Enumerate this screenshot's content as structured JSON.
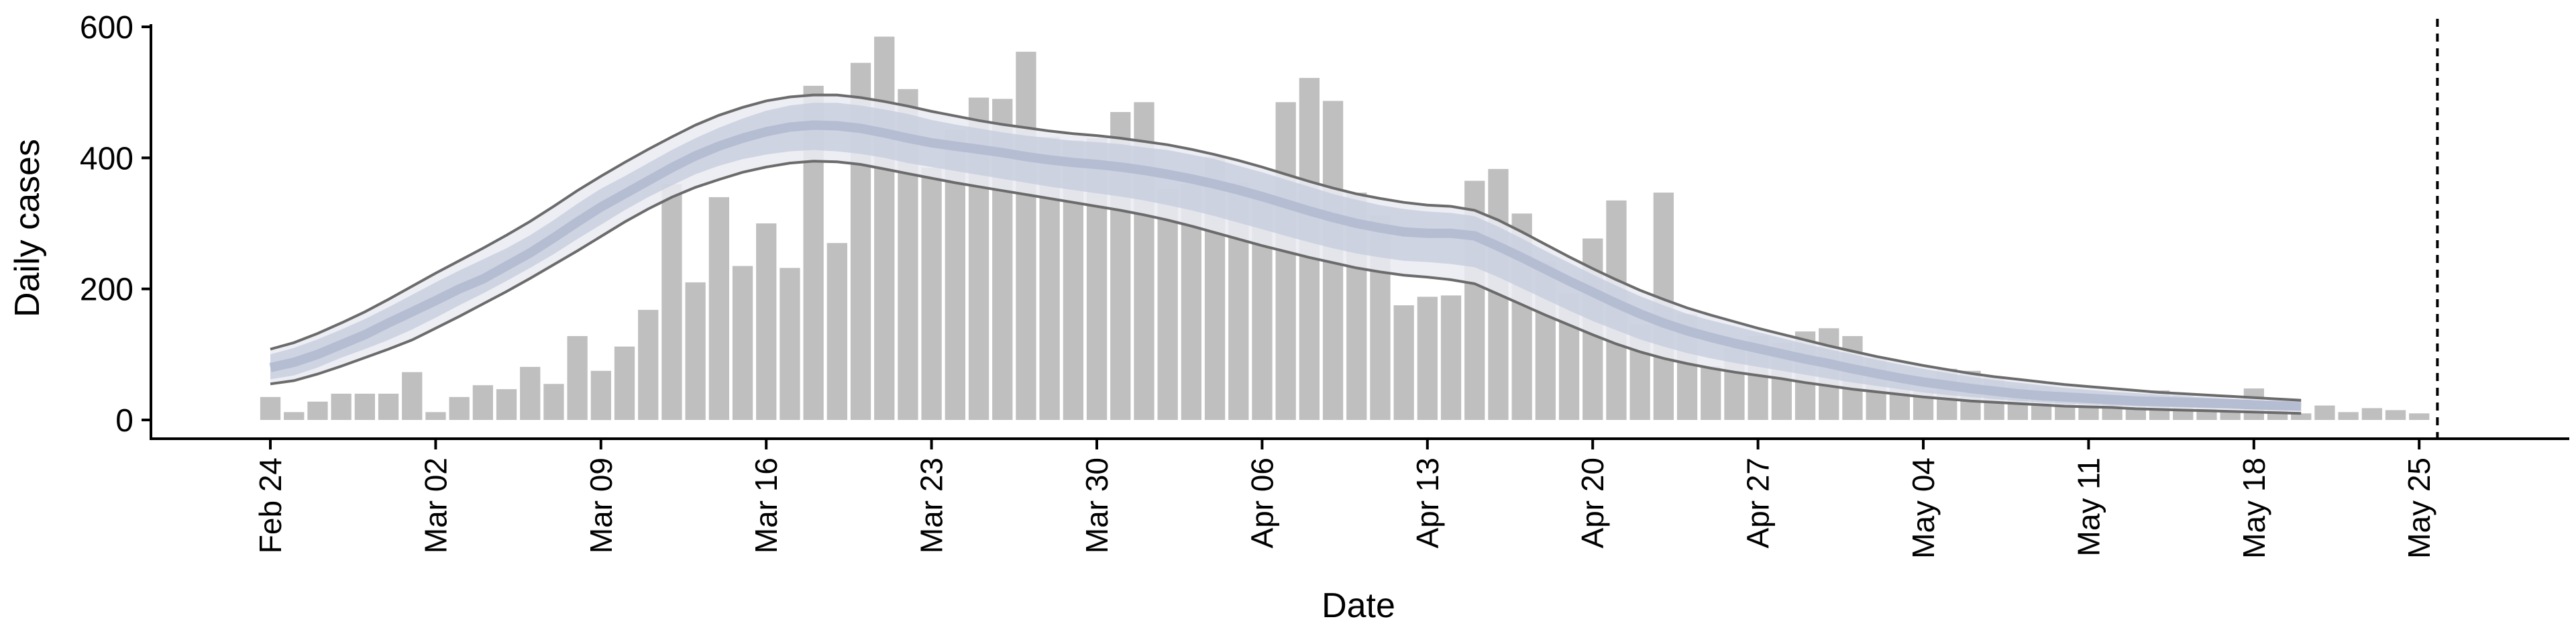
{
  "chart_data": {
    "type": "bar",
    "xlabel": "Date",
    "ylabel": "Daily cases",
    "ylim": [
      0,
      600
    ],
    "yticks": [
      0,
      200,
      400,
      600
    ],
    "xticks": [
      {
        "date": "2020-02-24",
        "label": "Feb 24"
      },
      {
        "date": "2020-03-02",
        "label": "Mar 02"
      },
      {
        "date": "2020-03-09",
        "label": "Mar 09"
      },
      {
        "date": "2020-03-16",
        "label": "Mar 16"
      },
      {
        "date": "2020-03-23",
        "label": "Mar 23"
      },
      {
        "date": "2020-03-30",
        "label": "Mar 30"
      },
      {
        "date": "2020-04-06",
        "label": "Apr 06"
      },
      {
        "date": "2020-04-13",
        "label": "Apr 13"
      },
      {
        "date": "2020-04-20",
        "label": "Apr 20"
      },
      {
        "date": "2020-04-27",
        "label": "Apr 27"
      },
      {
        "date": "2020-05-04",
        "label": "May 04"
      },
      {
        "date": "2020-05-11",
        "label": "May 11"
      },
      {
        "date": "2020-05-18",
        "label": "May 18"
      },
      {
        "date": "2020-05-25",
        "label": "May 25"
      }
    ],
    "x_start": "2020-02-24",
    "daily_cases": [
      35,
      12,
      28,
      40,
      40,
      40,
      73,
      12,
      35,
      53,
      47,
      81,
      55,
      128,
      75,
      112,
      168,
      360,
      210,
      340,
      235,
      300,
      232,
      510,
      270,
      545,
      585,
      505,
      385,
      442,
      492,
      490,
      562,
      432,
      427,
      430,
      470,
      485,
      352,
      360,
      402,
      362,
      337,
      485,
      522,
      487,
      347,
      312,
      175,
      188,
      190,
      365,
      383,
      315,
      242,
      193,
      277,
      335,
      145,
      347,
      162,
      82,
      110,
      128,
      118,
      135,
      140,
      128,
      95,
      55,
      45,
      78,
      75,
      65,
      52,
      50,
      35,
      40,
      33,
      30,
      45,
      40,
      27,
      12,
      48,
      32,
      10,
      22,
      12,
      18,
      15,
      10
    ],
    "estimate_median": [
      80,
      88,
      100,
      115,
      130,
      148,
      165,
      182,
      200,
      215,
      235,
      255,
      278,
      302,
      325,
      345,
      365,
      385,
      403,
      418,
      430,
      440,
      447,
      450,
      449,
      445,
      438,
      430,
      423,
      418,
      413,
      408,
      402,
      397,
      393,
      390,
      386,
      381,
      375,
      368,
      360,
      351,
      341,
      330,
      319,
      309,
      300,
      293,
      287,
      285,
      285,
      281,
      265,
      248,
      230,
      212,
      195,
      178,
      162,
      148,
      136,
      126,
      117,
      109,
      101,
      93,
      86,
      78,
      71,
      64,
      58,
      53,
      48,
      44,
      40,
      37,
      35,
      33,
      31,
      29,
      28,
      27,
      26,
      25,
      23,
      22,
      21
    ],
    "estimate_band_lower": [
      62,
      68,
      80,
      95,
      108,
      122,
      138,
      156,
      175,
      193,
      212,
      232,
      253,
      276,
      298,
      320,
      340,
      358,
      375,
      388,
      398,
      405,
      410,
      412,
      410,
      406,
      400,
      392,
      386,
      380,
      374,
      368,
      362,
      356,
      351,
      346,
      341,
      335,
      328,
      320,
      311,
      301,
      291,
      281,
      271,
      262,
      254,
      248,
      243,
      241,
      238,
      233,
      218,
      201,
      184,
      167,
      151,
      137,
      123,
      112,
      102,
      94,
      87,
      81,
      75,
      69,
      63,
      57,
      52,
      47,
      42,
      38,
      35,
      32,
      29,
      27,
      25,
      24,
      22,
      21,
      20,
      19,
      18,
      17,
      16,
      15,
      14
    ],
    "estimate_band_upper": [
      100,
      110,
      123,
      138,
      154,
      172,
      191,
      210,
      228,
      245,
      262,
      282,
      305,
      330,
      353,
      372,
      392,
      412,
      430,
      446,
      460,
      472,
      480,
      484,
      484,
      480,
      474,
      467,
      458,
      451,
      445,
      439,
      434,
      430,
      426,
      424,
      421,
      416,
      412,
      405,
      398,
      388,
      378,
      367,
      356,
      345,
      336,
      328,
      322,
      318,
      316,
      311,
      295,
      277,
      258,
      240,
      222,
      205,
      189,
      175,
      162,
      152,
      143,
      134,
      125,
      116,
      108,
      100,
      92,
      85,
      78,
      72,
      66,
      61,
      57,
      53,
      49,
      46,
      43,
      41,
      38,
      36,
      34,
      32,
      30,
      28,
      27
    ],
    "estimate_outer_lower": [
      55,
      60,
      70,
      82,
      95,
      108,
      122,
      140,
      158,
      177,
      196,
      216,
      237,
      258,
      280,
      302,
      322,
      340,
      355,
      367,
      378,
      386,
      392,
      395,
      394,
      390,
      383,
      376,
      369,
      362,
      356,
      350,
      344,
      338,
      332,
      326,
      320,
      313,
      305,
      296,
      286,
      276,
      266,
      257,
      248,
      240,
      232,
      226,
      221,
      218,
      214,
      208,
      192,
      176,
      160,
      145,
      130,
      116,
      104,
      94,
      86,
      79,
      73,
      68,
      63,
      57,
      52,
      47,
      43,
      39,
      35,
      32,
      29,
      27,
      25,
      23,
      21,
      20,
      19,
      17,
      16,
      15,
      14,
      13,
      12,
      11,
      10
    ],
    "estimate_outer_upper": [
      108,
      118,
      132,
      148,
      165,
      184,
      204,
      224,
      243,
      262,
      282,
      303,
      326,
      350,
      372,
      393,
      413,
      432,
      450,
      465,
      477,
      487,
      493,
      496,
      496,
      492,
      486,
      479,
      471,
      464,
      457,
      451,
      446,
      441,
      437,
      434,
      430,
      425,
      420,
      413,
      405,
      396,
      386,
      375,
      364,
      354,
      345,
      338,
      332,
      328,
      326,
      320,
      305,
      287,
      268,
      249,
      231,
      214,
      198,
      184,
      171,
      160,
      150,
      140,
      131,
      122,
      113,
      105,
      97,
      90,
      83,
      77,
      71,
      66,
      62,
      58,
      54,
      51,
      48,
      45,
      42,
      40,
      38,
      36,
      34,
      32,
      30
    ],
    "vline_date": "2020-05-26",
    "colors": {
      "bars": "#bfbfbf",
      "band_outer": "#eaebf2",
      "band_inner": "#c4cbdc",
      "estimate_line": "#6b6b6b",
      "axis": "#000000"
    }
  }
}
